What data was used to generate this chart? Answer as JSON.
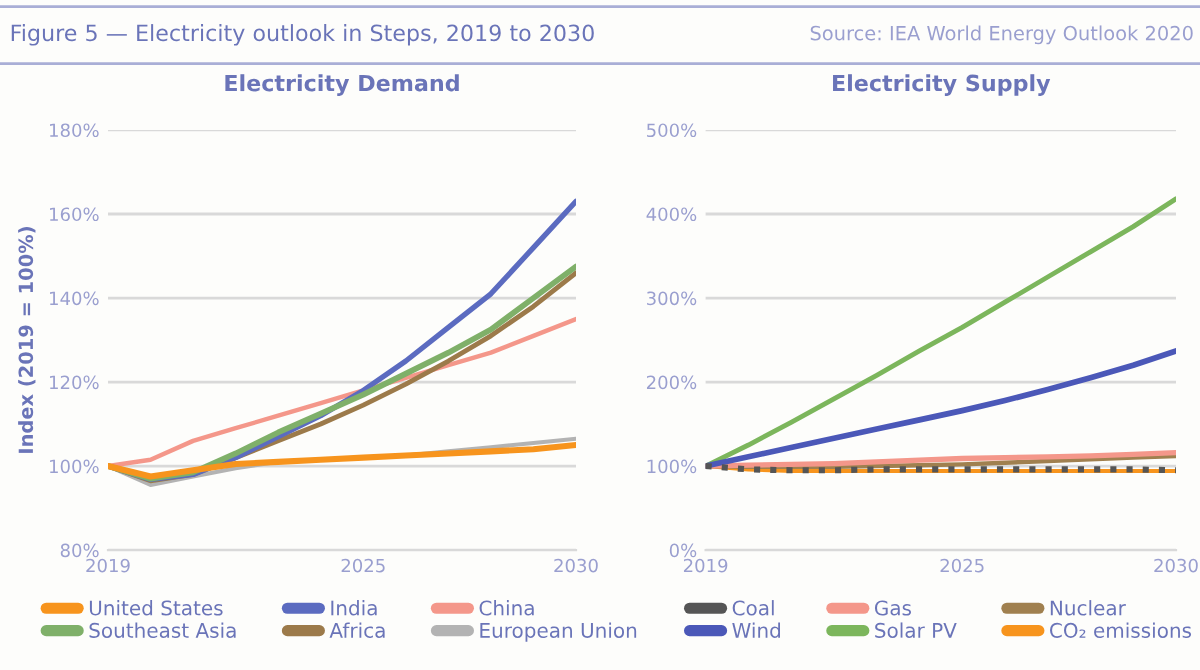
{
  "chart_data": [
    {
      "type": "line",
      "title": "Electricity Demand",
      "ylabel": "Index (2019 = 100%)",
      "annotations": [
        "Figure 5 — Electricity outlook in Steps, 2019 to 2030",
        "Source: IEA World Energy Outlook 2020"
      ],
      "x": [
        2019,
        2020,
        2021,
        2022,
        2023,
        2024,
        2025,
        2026,
        2027,
        2028,
        2029,
        2030
      ],
      "xlim": [
        2019,
        2030
      ],
      "xticks": [
        2019,
        2025,
        2030
      ],
      "ylim": [
        80,
        180
      ],
      "yticks": [
        {
          "value": 80,
          "label": "80%"
        },
        {
          "value": 100,
          "label": "100%"
        },
        {
          "value": 120,
          "label": "120%"
        },
        {
          "value": 140,
          "label": "140%"
        },
        {
          "value": 160,
          "label": "160%"
        },
        {
          "value": 180,
          "label": "180%"
        }
      ],
      "grid": "y",
      "legend": "bottom",
      "series": [
        {
          "name": "United States",
          "color": "#f7941d",
          "values": [
            100,
            97.5,
            99,
            100.5,
            101,
            101.5,
            102,
            102.5,
            103,
            103.5,
            104,
            105
          ]
        },
        {
          "name": "Southeast Asia",
          "color": "#7fb069",
          "values": [
            100,
            97,
            98.5,
            103,
            108,
            112.5,
            117,
            122,
            127,
            132.5,
            140,
            147.5
          ]
        },
        {
          "name": "India",
          "color": "#5b6bc0",
          "values": [
            100,
            96.8,
            98,
            102,
            107,
            112,
            118,
            125,
            133,
            141,
            152,
            163
          ]
        },
        {
          "name": "Africa",
          "color": "#9c7a4a",
          "values": [
            100,
            96.5,
            98,
            102,
            106,
            110,
            114.5,
            119.5,
            125,
            131,
            138,
            146
          ]
        },
        {
          "name": "China",
          "color": "#f4978a",
          "values": [
            100,
            101.5,
            106,
            109,
            112,
            115,
            118,
            121,
            124,
            127,
            131,
            135
          ]
        },
        {
          "name": "European Union",
          "color": "#b3b3b3",
          "values": [
            100,
            95.5,
            97.5,
            99.5,
            101,
            101.5,
            102,
            102.5,
            103.5,
            104.5,
            105.5,
            106.5
          ]
        }
      ]
    },
    {
      "type": "line",
      "title": "Electricity Supply",
      "x": [
        2019,
        2020,
        2021,
        2022,
        2023,
        2024,
        2025,
        2026,
        2027,
        2028,
        2029,
        2030
      ],
      "xlim": [
        2019,
        2030
      ],
      "xticks": [
        2019,
        2025,
        2030
      ],
      "ylim": [
        0,
        500
      ],
      "yticks": [
        {
          "value": 0,
          "label": "0%"
        },
        {
          "value": 100,
          "label": "100%"
        },
        {
          "value": 200,
          "label": "200%"
        },
        {
          "value": 300,
          "label": "300%"
        },
        {
          "value": 400,
          "label": "400%"
        },
        {
          "value": 500,
          "label": "500%"
        }
      ],
      "grid": "y",
      "legend": "bottom",
      "series": [
        {
          "name": "Coal",
          "color": "#555555",
          "line_style": "dotted",
          "values": [
            100,
            96,
            95,
            95,
            96,
            96,
            96,
            96,
            96,
            96,
            96,
            95
          ]
        },
        {
          "name": "Wind",
          "color": "#4b58b8",
          "values": [
            100,
            111,
            122,
            133,
            144,
            155,
            166,
            178,
            191,
            205,
            220,
            237
          ]
        },
        {
          "name": "Gas",
          "color": "#f4978a",
          "values": [
            100,
            101,
            102,
            103,
            105,
            107,
            109,
            110,
            111,
            112,
            114,
            116
          ]
        },
        {
          "name": "Solar PV",
          "color": "#7cb65c",
          "values": [
            100,
            125,
            152,
            180,
            208,
            237,
            265,
            295,
            325,
            355,
            385,
            418
          ]
        },
        {
          "name": "Nuclear",
          "color": "#a0804f",
          "values": [
            100,
            99,
            99,
            99,
            100,
            101,
            102,
            104,
            106,
            108,
            110,
            112
          ]
        },
        {
          "name": "CO₂ emissions",
          "color": "#f7941d",
          "values": [
            100,
            96,
            94,
            94,
            94,
            94,
            94,
            94,
            94,
            94,
            94,
            94
          ]
        }
      ]
    }
  ]
}
